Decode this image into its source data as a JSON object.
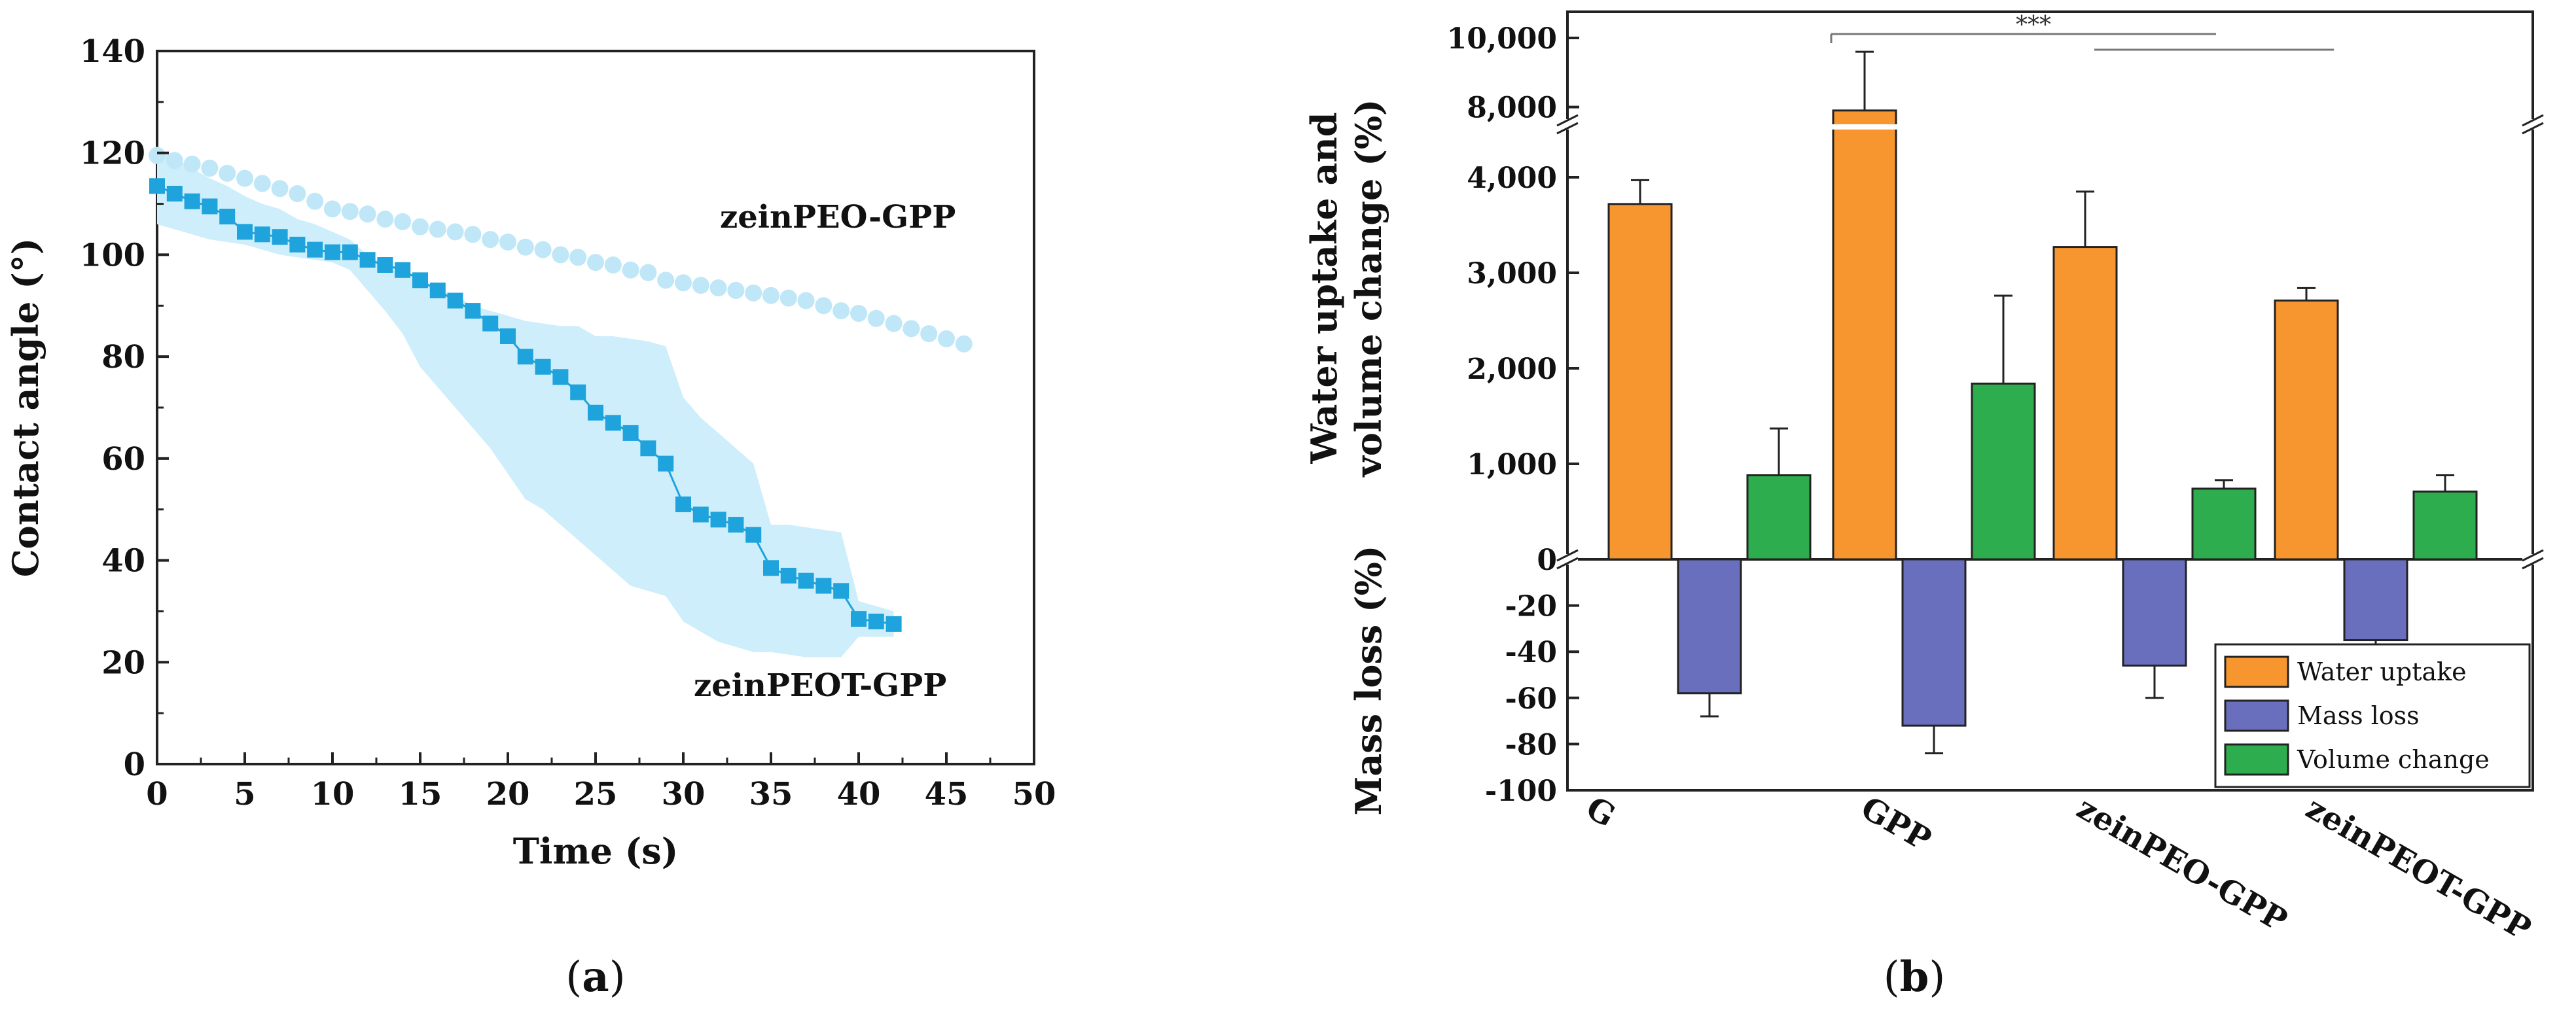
{
  "chart_data": [
    {
      "panel": "(a)",
      "type": "scatter",
      "xlabel": "Time (s)",
      "ylabel": "Contact angle (°)",
      "xlim": [
        0,
        50
      ],
      "ylim": [
        0,
        140
      ],
      "xticks": [
        0,
        5,
        10,
        15,
        20,
        25,
        30,
        35,
        40,
        45,
        50
      ],
      "yticks": [
        0,
        20,
        40,
        60,
        80,
        100,
        120,
        140
      ],
      "series": [
        {
          "name": "zeinPEO-GPP",
          "marker": "circle",
          "color": "#bfe7f7",
          "x": [
            0,
            1,
            2,
            3,
            4,
            5,
            6,
            7,
            8,
            9,
            10,
            11,
            12,
            13,
            14,
            15,
            16,
            17,
            18,
            19,
            20,
            21,
            22,
            23,
            24,
            25,
            26,
            27,
            28,
            29,
            30,
            31,
            32,
            33,
            34,
            35,
            36,
            37,
            38,
            39,
            40,
            41,
            42,
            43,
            44,
            45,
            46
          ],
          "y": [
            119.5,
            118.5,
            117.8,
            117,
            116,
            115,
            114,
            113,
            112,
            110.5,
            109,
            108.5,
            108,
            107,
            106.5,
            105.5,
            105,
            104.5,
            104,
            103,
            102.5,
            101.5,
            101,
            100,
            99.5,
            98.5,
            98,
            97,
            96.5,
            95,
            94.5,
            94,
            93.5,
            93,
            92.5,
            92,
            91.5,
            91,
            90,
            89,
            88.5,
            87.5,
            86.5,
            85.5,
            84.5,
            83.5,
            82.5
          ]
        },
        {
          "name": "zeinPEOT-GPP",
          "marker": "square",
          "color": "#1fa3dc",
          "band_color": "#cdeefa",
          "x": [
            0,
            1,
            2,
            3,
            4,
            5,
            6,
            7,
            8,
            9,
            10,
            11,
            12,
            13,
            14,
            15,
            16,
            17,
            18,
            19,
            20,
            21,
            22,
            23,
            24,
            25,
            26,
            27,
            28,
            29,
            30,
            31,
            32,
            33,
            34,
            35,
            36,
            37,
            38,
            39,
            40,
            41,
            42
          ],
          "y": [
            113.5,
            112,
            110.5,
            109.5,
            107.5,
            104.5,
            104,
            103.5,
            102,
            101,
            100.5,
            100.5,
            99,
            98,
            97,
            95,
            93,
            91,
            89,
            86.5,
            84,
            80,
            78,
            76,
            73,
            69,
            67,
            65,
            62,
            59,
            51,
            49,
            48,
            47,
            45,
            38.5,
            37,
            36,
            35,
            34,
            28.5,
            28,
            27.5
          ],
          "band_upper": [
            121,
            119,
            117,
            115,
            113.5,
            111.5,
            110,
            109,
            107,
            106,
            104.5,
            103,
            100,
            98,
            96,
            95,
            93,
            92,
            90,
            89,
            88,
            87,
            86.5,
            86,
            86,
            84,
            84,
            83.5,
            83,
            82,
            72,
            68,
            65,
            62,
            59,
            47,
            47,
            46.5,
            46,
            45.5,
            32,
            31,
            30
          ],
          "band_lower": [
            106,
            105,
            104,
            103,
            102.5,
            102,
            101,
            100,
            99.5,
            99,
            98.5,
            97,
            93,
            89,
            84.5,
            78,
            74,
            70,
            66,
            62,
            57,
            52,
            50,
            47,
            44,
            41,
            38,
            35,
            34,
            33,
            28,
            26,
            24,
            23,
            22,
            22,
            21.5,
            21,
            21,
            21,
            25,
            25,
            25
          ]
        }
      ],
      "annotations": [
        "zeinPEO-GPP",
        "zeinPEOT-GPP"
      ]
    },
    {
      "panel": "(b)",
      "type": "bar",
      "ylabel_top": "Water uptake and volume change (%)",
      "ylabel_bottom": "Mass loss (%)",
      "categories": [
        "G",
        "GPP",
        "zeinPEO-GPP",
        "zeinPEOT-GPP"
      ],
      "series": [
        {
          "name": "Water uptake",
          "color": "#f7962e",
          "values": [
            3720,
            7900,
            3270,
            2710
          ],
          "errors": [
            250,
            1700,
            580,
            130
          ]
        },
        {
          "name": "Mass loss",
          "color": "#6a6fbd",
          "values": [
            -58,
            -72,
            -46,
            -35
          ],
          "errors": [
            10,
            12,
            14,
            4
          ]
        },
        {
          "name": "Volume change",
          "color": "#2ead4e",
          "values": [
            880,
            1840,
            740,
            710
          ],
          "errors": [
            490,
            920,
            90,
            170
          ]
        }
      ],
      "ylim_upper": [
        0,
        10000
      ],
      "axis_break": [
        4500,
        7500
      ],
      "ylim_lower": [
        -100,
        0
      ],
      "yticks_upper": [
        "10,000",
        "8,000",
        "4,000",
        "3,000",
        "2,000",
        "1,000",
        "0"
      ],
      "yticks_lower": [
        "-20",
        "-40",
        "-60",
        "-80",
        "-100"
      ],
      "significance": "***",
      "legend_position": "bottom-right"
    }
  ],
  "captions": {
    "a": "(a)",
    "b": "(b)"
  },
  "labels": {
    "paren_open": "(",
    "paren_close": ")",
    "a_letter": "a",
    "b_letter": "b"
  }
}
